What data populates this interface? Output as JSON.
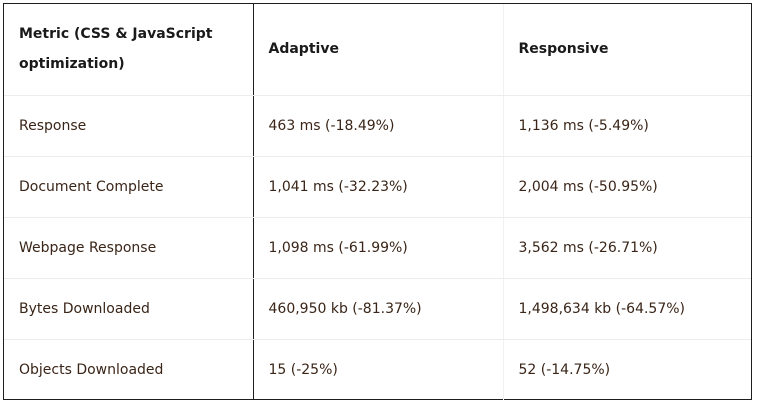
{
  "table": {
    "headers": [
      "Metric (CSS & JavaScript optimization)",
      "Adaptive",
      "Responsive"
    ],
    "rows": [
      [
        "Response",
        "463 ms (-18.49%)",
        "1,136 ms (-5.49%)"
      ],
      [
        "Document Complete",
        "1,041 ms (-32.23%)",
        "2,004 ms (-50.95%)"
      ],
      [
        "Webpage Response",
        "1,098 ms (-61.99%)",
        "3,562 ms (-26.71%)"
      ],
      [
        "Bytes Downloaded",
        "460,950 kb (-81.37%)",
        "1,498,634 kb (-64.57%)"
      ],
      [
        "Objects Downloaded",
        "15 (-25%)",
        "52 (-14.75%)"
      ]
    ]
  }
}
